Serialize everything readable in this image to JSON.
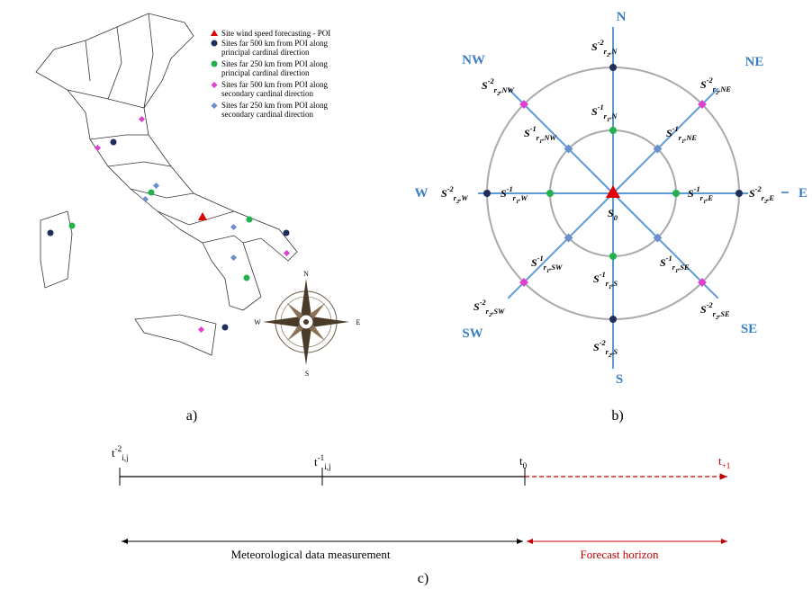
{
  "panel_a": {
    "label": "a)",
    "legend": [
      "Site wind speed forecasting - POI",
      "Sites far 500 km from POI along principal cardinal direction",
      "Sites far 250 km from POI along principal cardinal direction",
      "Sites far 500 km from POI along secondary cardinal direction",
      "Sites far 250 km from POI along secondary cardinal direction"
    ],
    "compass": [
      "N",
      "E",
      "S",
      "W"
    ]
  },
  "panel_b": {
    "label": "b)",
    "center": {
      "base": "S",
      "sub": "0"
    },
    "directions": [
      {
        "name": "N",
        "inner": {
          "base": "S",
          "sup": "-1",
          "sub": "r",
          "sub2": "1",
          "dir": ",N"
        },
        "outer": {
          "base": "S",
          "sup": "-2",
          "sub": "r",
          "sub2": "2",
          "dir": ",N"
        }
      },
      {
        "name": "NE",
        "inner": {
          "base": "S",
          "sup": "-1",
          "sub": "r",
          "sub2": "1",
          "dir": ",NE"
        },
        "outer": {
          "base": "S",
          "sup": "-2",
          "sub": "r",
          "sub2": "2",
          "dir": ",NE"
        }
      },
      {
        "name": "E",
        "inner": {
          "base": "S",
          "sup": "-1",
          "sub": "r",
          "sub2": "1",
          "dir": ",E"
        },
        "outer": {
          "base": "S",
          "sup": "-2",
          "sub": "r",
          "sub2": "2",
          "dir": ",E"
        }
      },
      {
        "name": "SE",
        "inner": {
          "base": "S",
          "sup": "-1",
          "sub": "r",
          "sub2": "1",
          "dir": ",SE"
        },
        "outer": {
          "base": "S",
          "sup": "-2",
          "sub": "r",
          "sub2": "2",
          "dir": ",SE"
        }
      },
      {
        "name": "S",
        "inner": {
          "base": "S",
          "sup": "-1",
          "sub": "r",
          "sub2": "1",
          "dir": ",S"
        },
        "outer": {
          "base": "S",
          "sup": "-2",
          "sub": "r",
          "sub2": "2",
          "dir": ",S"
        }
      },
      {
        "name": "SW",
        "inner": {
          "base": "S",
          "sup": "-1",
          "sub": "r",
          "sub2": "1",
          "dir": ",SW"
        },
        "outer": {
          "base": "S",
          "sup": "-2",
          "sub": "r",
          "sub2": "2",
          "dir": ",SW"
        }
      },
      {
        "name": "W",
        "inner": {
          "base": "S",
          "sup": "-1",
          "sub": "r",
          "sub2": "1",
          "dir": ",W"
        },
        "outer": {
          "base": "S",
          "sup": "-2",
          "sub": "r",
          "sub2": "2",
          "dir": ",W"
        }
      },
      {
        "name": "NW",
        "inner": {
          "base": "S",
          "sup": "-1",
          "sub": "r",
          "sub2": "1",
          "dir": ",NW"
        },
        "outer": {
          "base": "S",
          "sup": "-2",
          "sub": "r",
          "sub2": "2",
          "dir": ",NW"
        }
      }
    ]
  },
  "panel_c": {
    "label": "c)",
    "times": [
      {
        "base": "t",
        "sup": "-2",
        "sub": "i,j"
      },
      {
        "base": "t",
        "sup": "-1",
        "sub": "i,j"
      },
      {
        "base": "t",
        "sub": "0"
      },
      {
        "base": "t",
        "sub": "+1"
      }
    ],
    "spans": [
      "Meteorological data measurement",
      "Forecast horizon"
    ]
  }
}
